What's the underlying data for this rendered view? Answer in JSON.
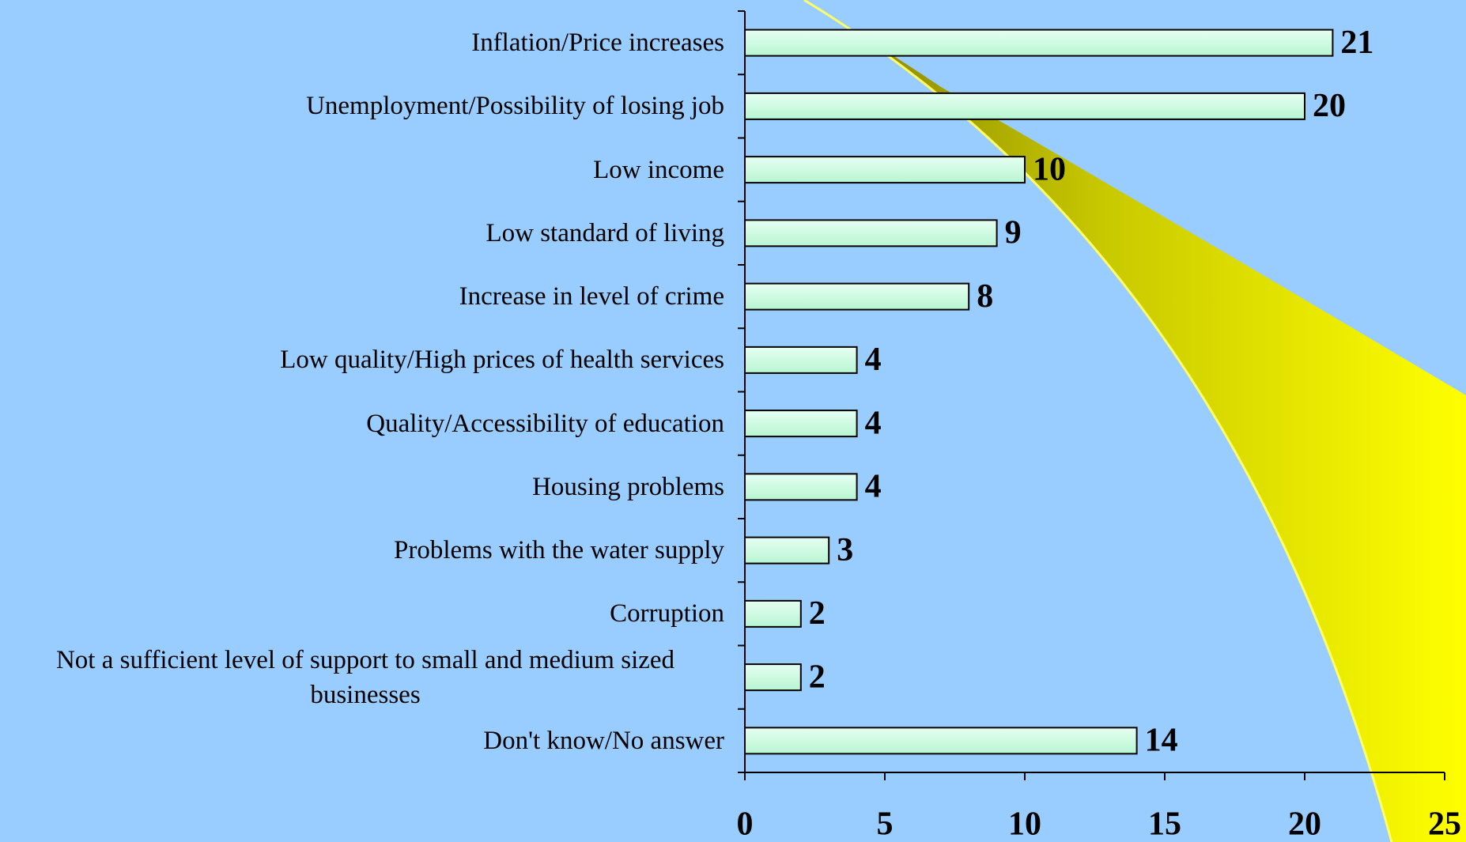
{
  "chart_data": {
    "type": "bar",
    "orientation": "horizontal",
    "categories": [
      "Inflation/Price increases",
      "Unemployment/Possibility of losing job",
      "Low income",
      "Low standard of living",
      "Increase in level of crime",
      "Low quality/High prices of health services",
      "Quality/Accessibility of education",
      "Housing problems",
      "Problems with the water supply",
      "Corruption",
      "Not a sufficient level of support to small and medium sized businesses",
      "Don't know/No answer"
    ],
    "values": [
      21,
      20,
      10,
      9,
      8,
      4,
      4,
      4,
      3,
      2,
      2,
      14
    ],
    "color": "#ccffe6",
    "xlim": [
      0,
      25
    ],
    "xticks": [
      0,
      5,
      10,
      15,
      20,
      25
    ],
    "grid": false
  }
}
